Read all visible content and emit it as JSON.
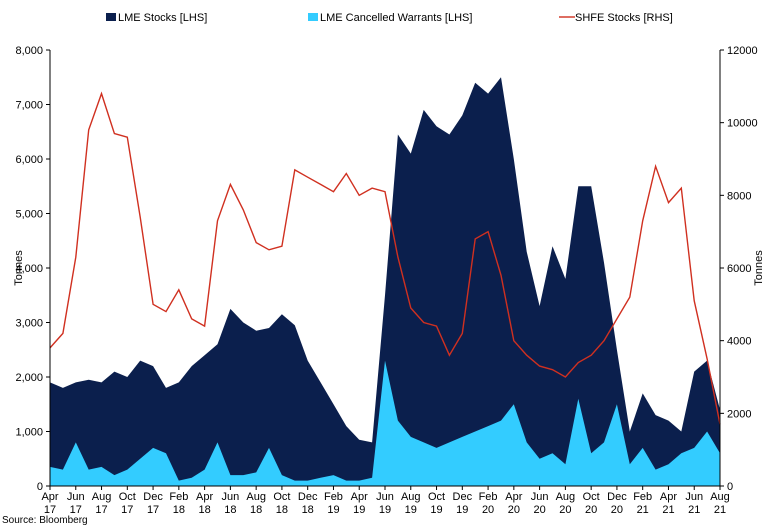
{
  "chart_data": {
    "type": "area",
    "title": "",
    "legend_position": "top",
    "grid": false,
    "x_categories": [
      "Apr 17",
      "Jun 17",
      "Aug 17",
      "Oct 17",
      "Dec 17",
      "Feb 18",
      "Apr 18",
      "Jun 18",
      "Aug 18",
      "Oct 18",
      "Dec 18",
      "Feb 19",
      "Apr 19",
      "Jun 19",
      "Aug 19",
      "Oct 19",
      "Dec 19",
      "Feb 20",
      "Apr 20",
      "Jun 20",
      "Aug 20",
      "Oct 20",
      "Dec 20",
      "Feb 21",
      "Apr 21",
      "Jun 21",
      "Aug 21"
    ],
    "x_tick_labels": [
      {
        "month": "Apr",
        "year": "17"
      },
      {
        "month": "Jun",
        "year": "17"
      },
      {
        "month": "Aug",
        "year": "17"
      },
      {
        "month": "Oct",
        "year": "17"
      },
      {
        "month": "Dec",
        "year": "17"
      },
      {
        "month": "Feb",
        "year": "18"
      },
      {
        "month": "Apr",
        "year": "18"
      },
      {
        "month": "Jun",
        "year": "18"
      },
      {
        "month": "Aug",
        "year": "18"
      },
      {
        "month": "Oct",
        "year": "18"
      },
      {
        "month": "Dec",
        "year": "18"
      },
      {
        "month": "Feb",
        "year": "19"
      },
      {
        "month": "Apr",
        "year": "19"
      },
      {
        "month": "Jun",
        "year": "19"
      },
      {
        "month": "Aug",
        "year": "19"
      },
      {
        "month": "Oct",
        "year": "19"
      },
      {
        "month": "Dec",
        "year": "19"
      },
      {
        "month": "Feb",
        "year": "20"
      },
      {
        "month": "Apr",
        "year": "20"
      },
      {
        "month": "Jun",
        "year": "20"
      },
      {
        "month": "Aug",
        "year": "20"
      },
      {
        "month": "Oct",
        "year": "20"
      },
      {
        "month": "Dec",
        "year": "20"
      },
      {
        "month": "Feb",
        "year": "21"
      },
      {
        "month": "Apr",
        "year": "21"
      },
      {
        "month": "Jun",
        "year": "21"
      },
      {
        "month": "Aug",
        "year": "21"
      }
    ],
    "x_range": [
      "Apr 17",
      "Aug 21"
    ],
    "y_left": {
      "label": "Tonnes",
      "min": 0,
      "max": 8000,
      "ticks": [
        "0",
        "1,000",
        "2,000",
        "3,000",
        "4,000",
        "5,000",
        "6,000",
        "7,000",
        "8,000"
      ]
    },
    "y_right": {
      "label": "Tonnes",
      "min": 0,
      "max": 12000,
      "ticks": [
        "0",
        "2000",
        "4000",
        "6000",
        "8000",
        "10000",
        "12000"
      ]
    },
    "series": [
      {
        "name": "LME Stocks [LHS]",
        "type": "area",
        "axis": "left",
        "color": "#0b1f4d",
        "x": [
          "Apr 17",
          "May 17",
          "Jun 17",
          "Jul 17",
          "Aug 17",
          "Sep 17",
          "Oct 17",
          "Nov 17",
          "Dec 17",
          "Jan 18",
          "Feb 18",
          "Mar 18",
          "Apr 18",
          "May 18",
          "Jun 18",
          "Jul 18",
          "Aug 18",
          "Sep 18",
          "Oct 18",
          "Nov 18",
          "Dec 18",
          "Jan 19",
          "Feb 19",
          "Mar 19",
          "Apr 19",
          "May 19",
          "Jun 19",
          "Jul 19",
          "Aug 19",
          "Sep 19",
          "Oct 19",
          "Nov 19",
          "Dec 19",
          "Jan 20",
          "Feb 20",
          "Mar 20",
          "Apr 20",
          "May 20",
          "Jun 20",
          "Jul 20",
          "Aug 20",
          "Sep 20",
          "Oct 20",
          "Nov 20",
          "Dec 20",
          "Jan 21",
          "Feb 21",
          "Mar 21",
          "Apr 21",
          "May 21",
          "Jun 21",
          "Jul 21",
          "Aug 21"
        ],
        "values": [
          1900,
          1800,
          1900,
          1950,
          1900,
          2100,
          2000,
          2300,
          2200,
          1800,
          1900,
          2200,
          2400,
          2600,
          3250,
          3000,
          2850,
          2900,
          3150,
          2950,
          2300,
          1900,
          1500,
          1100,
          850,
          800,
          3500,
          6450,
          6100,
          6900,
          6600,
          6450,
          6800,
          7400,
          7200,
          7500,
          6000,
          4300,
          3300,
          4400,
          3800,
          5500,
          5500,
          4100,
          2500,
          1000,
          1700,
          1300,
          1200,
          1000,
          2100,
          2300,
          1400
        ]
      },
      {
        "name": "LME Cancelled Warrants [LHS]",
        "type": "area",
        "axis": "left",
        "color": "#33ccff",
        "x": [
          "Apr 17",
          "May 17",
          "Jun 17",
          "Jul 17",
          "Aug 17",
          "Sep 17",
          "Oct 17",
          "Nov 17",
          "Dec 17",
          "Jan 18",
          "Feb 18",
          "Mar 18",
          "Apr 18",
          "May 18",
          "Jun 18",
          "Jul 18",
          "Aug 18",
          "Sep 18",
          "Oct 18",
          "Nov 18",
          "Dec 18",
          "Jan 19",
          "Feb 19",
          "Mar 19",
          "Apr 19",
          "May 19",
          "Jun 19",
          "Jul 19",
          "Aug 19",
          "Sep 19",
          "Oct 19",
          "Nov 19",
          "Dec 19",
          "Jan 20",
          "Feb 20",
          "Mar 20",
          "Apr 20",
          "May 20",
          "Jun 20",
          "Jul 20",
          "Aug 20",
          "Sep 20",
          "Oct 20",
          "Nov 20",
          "Dec 20",
          "Jan 21",
          "Feb 21",
          "Mar 21",
          "Apr 21",
          "May 21",
          "Jun 21",
          "Jul 21",
          "Aug 21"
        ],
        "values": [
          350,
          300,
          800,
          300,
          350,
          200,
          300,
          500,
          700,
          600,
          100,
          150,
          300,
          800,
          200,
          200,
          250,
          700,
          200,
          100,
          100,
          150,
          200,
          100,
          100,
          150,
          2300,
          1200,
          900,
          800,
          700,
          800,
          900,
          1000,
          1100,
          1200,
          1500,
          800,
          500,
          600,
          400,
          1600,
          600,
          800,
          1500,
          400,
          700,
          300,
          400,
          600,
          700,
          1000,
          600
        ]
      },
      {
        "name": "SHFE Stocks [RHS]",
        "type": "line",
        "axis": "right",
        "color": "#d03020",
        "x": [
          "Apr 17",
          "May 17",
          "Jun 17",
          "Jul 17",
          "Aug 17",
          "Sep 17",
          "Oct 17",
          "Nov 17",
          "Dec 17",
          "Jan 18",
          "Feb 18",
          "Mar 18",
          "Apr 18",
          "May 18",
          "Jun 18",
          "Jul 18",
          "Aug 18",
          "Sep 18",
          "Oct 18",
          "Nov 18",
          "Dec 18",
          "Jan 19",
          "Feb 19",
          "Mar 19",
          "Apr 19",
          "May 19",
          "Jun 19",
          "Jul 19",
          "Aug 19",
          "Sep 19",
          "Oct 19",
          "Nov 19",
          "Dec 19",
          "Jan 20",
          "Feb 20",
          "Mar 20",
          "Apr 20",
          "May 20",
          "Jun 20",
          "Jul 20",
          "Aug 20",
          "Sep 20",
          "Oct 20",
          "Nov 20",
          "Dec 20",
          "Jan 21",
          "Feb 21",
          "Mar 21",
          "Apr 21",
          "May 21",
          "Jun 21",
          "Jul 21",
          "Aug 21"
        ],
        "values": [
          3800,
          4200,
          6300,
          9800,
          10800,
          9700,
          9600,
          7400,
          5000,
          4800,
          5400,
          4600,
          4400,
          7300,
          8300,
          7600,
          6700,
          6500,
          6600,
          8700,
          8500,
          8300,
          8100,
          8600,
          8000,
          8200,
          8100,
          6300,
          4900,
          4500,
          4400,
          3600,
          4200,
          6800,
          7000,
          5800,
          4000,
          3600,
          3300,
          3200,
          3000,
          3400,
          3600,
          4000,
          4600,
          5200,
          7300,
          8800,
          7800,
          8200,
          5100,
          3500,
          1700
        ]
      }
    ],
    "source": "Source: Bloomberg"
  }
}
